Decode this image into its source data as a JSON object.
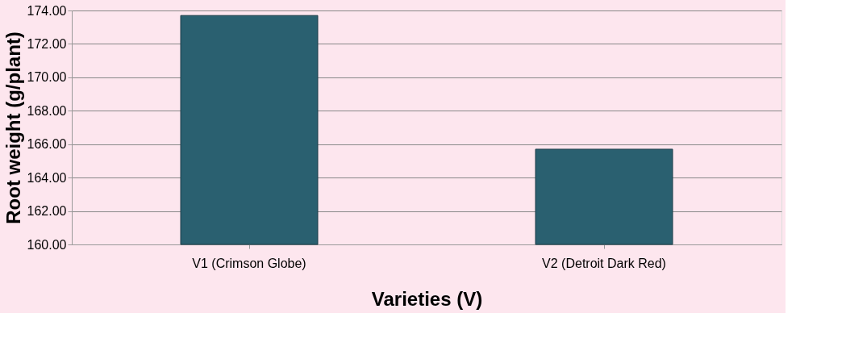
{
  "chart_data": {
    "type": "bar",
    "xlabel": "Varieties (V)",
    "ylabel": "Root weight (g/plant)",
    "categories": [
      "V1 (Crimson Globe)",
      "V2 (Detroit Dark Red)"
    ],
    "values": [
      173.7,
      165.7
    ],
    "color": "#2a6070",
    "ylim": [
      160,
      174
    ],
    "yticks": [
      {
        "value": 160,
        "label": "160.00"
      },
      {
        "value": 162,
        "label": "162.00"
      },
      {
        "value": 164,
        "label": "164.00"
      },
      {
        "value": 166,
        "label": "166.00"
      },
      {
        "value": 168,
        "label": "168.00"
      },
      {
        "value": 170,
        "label": "170.00"
      },
      {
        "value": 172,
        "label": "172.00"
      },
      {
        "value": 174,
        "label": "174.00"
      }
    ],
    "grid": "y"
  }
}
